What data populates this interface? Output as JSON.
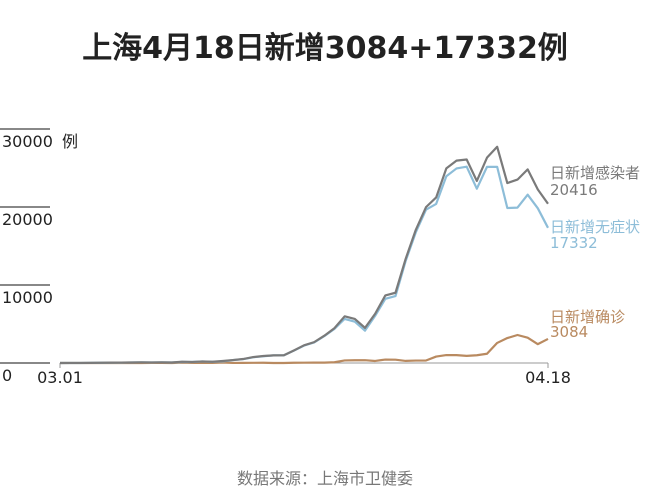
{
  "chart_data": {
    "type": "line",
    "title": "上海4月18日新增3084+17332例",
    "source": "数据来源：上海市卫健委",
    "y_unit": "例",
    "categories": [
      "03.01",
      null,
      null,
      null,
      null,
      null,
      null,
      null,
      null,
      null,
      null,
      null,
      null,
      null,
      null,
      null,
      null,
      null,
      null,
      null,
      null,
      null,
      null,
      null,
      null,
      null,
      null,
      null,
      null,
      null,
      null,
      null,
      null,
      null,
      null,
      null,
      null,
      null,
      null,
      null,
      null,
      null,
      null,
      null,
      null,
      null,
      null,
      null,
      "04.18"
    ],
    "ylim": [
      0,
      30000
    ],
    "yticks": [
      0,
      10000,
      20000,
      30000
    ],
    "series": [
      {
        "name": "日新增感染者",
        "color": "#7a7a7a",
        "values": [
          2,
          6,
          5,
          19,
          31,
          48,
          55,
          65,
          80,
          75,
          83,
          65,
          169,
          139,
          202,
          158,
          260,
          374,
          509,
          758,
          896,
          981,
          983,
          1609,
          2269,
          2676,
          3500,
          4477,
          5982,
          5653,
          4502,
          6311,
          8664,
          9006,
          13354,
          17077,
          19982,
          21222,
          24952,
          25949,
          26087,
          23342,
          26330,
          27719,
          23072,
          23513,
          24820,
          22248,
          20416
        ]
      },
      {
        "name": "日新增无症状",
        "color": "#8dbdd8",
        "values": [
          1,
          3,
          2,
          16,
          28,
          45,
          51,
          62,
          76,
          64,
          78,
          64,
          128,
          130,
          197,
          150,
          203,
          366,
          492,
          734,
          865,
          977,
          979,
          1580,
          2231,
          2631,
          3450,
          4381,
          5656,
          5298,
          4144,
          6051,
          8226,
          8581,
          13086,
          16766,
          19660,
          20398,
          23937,
          24943,
          25173,
          22348,
          25141,
          25146,
          19872,
          19923,
          21582,
          19831,
          17332
        ]
      },
      {
        "name": "日新增确诊",
        "color": "#b98a60",
        "values": [
          1,
          3,
          3,
          3,
          3,
          3,
          4,
          3,
          4,
          11,
          5,
          1,
          41,
          9,
          5,
          8,
          57,
          8,
          17,
          24,
          31,
          4,
          4,
          29,
          38,
          45,
          50,
          96,
          326,
          355,
          358,
          260,
          438,
          425,
          268,
          311,
          322,
          824,
          1015,
          1006,
          914,
          994,
          1189,
          2573,
          3200,
          3590,
          3238,
          2417,
          3084
        ]
      }
    ]
  }
}
